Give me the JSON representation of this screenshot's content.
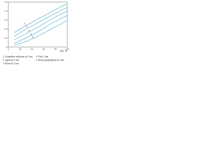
{
  "chart_data": {
    "type": "line",
    "x_label": "RH %",
    "xlim": [
      0,
      100
    ],
    "xticks": [
      0,
      20,
      40,
      60,
      80,
      100
    ],
    "ylim": [
      0,
      0.5
    ],
    "yticks": [
      0,
      0.1,
      0.2,
      0.3,
      0.4,
      0.5
    ],
    "x": [
      10,
      30,
      50,
      70,
      90,
      100
    ],
    "series": [
      {
        "name": "Crystalline cellulose at 1 bar",
        "label": "1",
        "color": "#5aaed6",
        "values": [
          0.16,
          0.24,
          0.31,
          0.38,
          0.45,
          0.48
        ]
      },
      {
        "name": "Lignin at 1 bar",
        "label": "2",
        "color": "#5aaed6",
        "values": [
          0.12,
          0.2,
          0.27,
          0.34,
          0.41,
          0.44
        ]
      },
      {
        "name": "Wood at 1 bar",
        "label": "3",
        "color": "#5aaed6",
        "values": [
          0.08,
          0.15,
          0.22,
          0.3,
          0.37,
          0.4
        ]
      },
      {
        "name": "Pulp 1 bar",
        "label": "4",
        "color": "#5aaed6",
        "values": [
          0.04,
          0.1,
          0.17,
          0.25,
          0.32,
          0.35
        ]
      },
      {
        "name": "Wood (acetylated) at 1 bar",
        "label": "5",
        "color": "#5aaed6",
        "values": [
          0.02,
          0.06,
          0.12,
          0.19,
          0.26,
          0.3
        ]
      }
    ]
  }
}
